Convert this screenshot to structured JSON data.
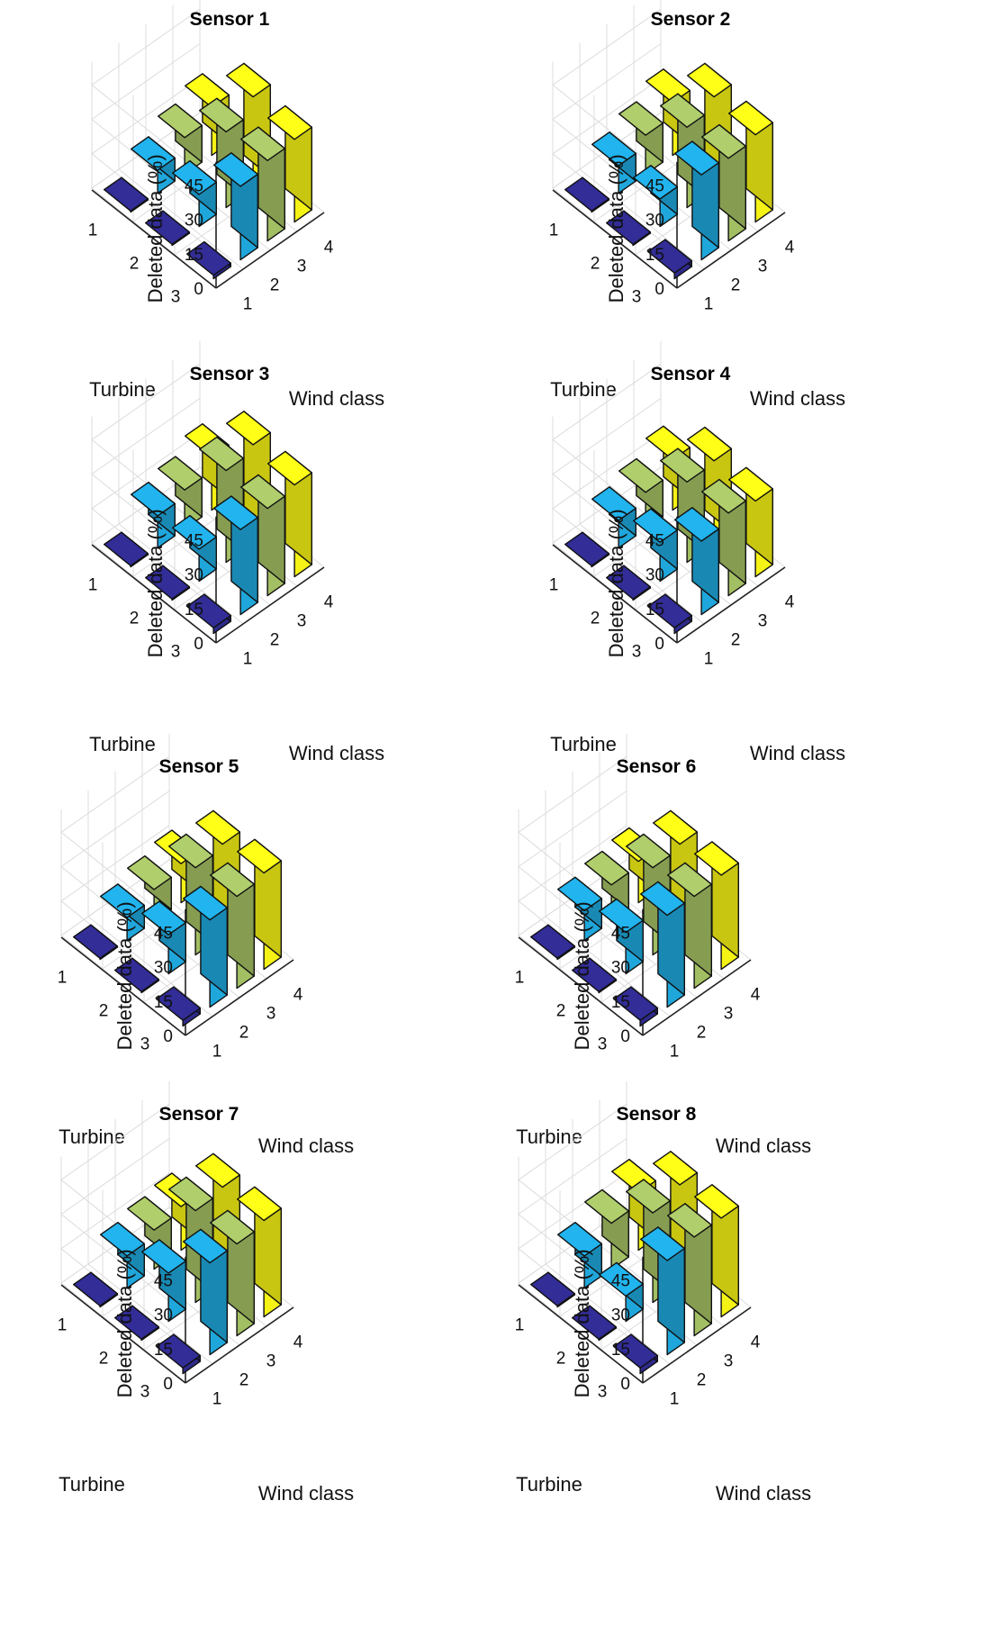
{
  "chart_data": [
    {
      "type": "bar3d",
      "title": "Sensor 1",
      "xlabel": "Wind class",
      "ylabel": "Turbine",
      "zlabel": "Deleted data (%)",
      "x_ticks": [
        "1",
        "2",
        "3",
        "4"
      ],
      "y_ticks": [
        "1",
        "2",
        "3"
      ],
      "z_ticks": [
        "0",
        "15",
        "30",
        "45"
      ],
      "zlim": [
        0,
        45
      ],
      "series": [
        {
          "turbine": "1",
          "values": [
            0.5,
            10,
            16,
            21
          ]
        },
        {
          "turbine": "2",
          "values": [
            0.5,
            14,
            33,
            40
          ]
        },
        {
          "turbine": "3",
          "values": [
            1.5,
            32,
            35,
            36
          ]
        }
      ]
    },
    {
      "type": "bar3d",
      "title": "Sensor 2",
      "xlabel": "Wind class",
      "ylabel": "Turbine",
      "zlabel": "Deleted data (%)",
      "x_ticks": [
        "1",
        "2",
        "3",
        "4"
      ],
      "y_ticks": [
        "1",
        "2",
        "3"
      ],
      "z_ticks": [
        "0",
        "15",
        "30",
        "45"
      ],
      "zlim": [
        0,
        45
      ],
      "series": [
        {
          "turbine": "1",
          "values": [
            0.5,
            12,
            17,
            23
          ]
        },
        {
          "turbine": "2",
          "values": [
            0.5,
            12,
            35,
            40
          ]
        },
        {
          "turbine": "3",
          "values": [
            2.5,
            37,
            36,
            38
          ]
        }
      ]
    },
    {
      "type": "bar3d",
      "title": "Sensor 3",
      "xlabel": "Wind class",
      "ylabel": "Turbine",
      "zlabel": "Deleted data (%)",
      "x_ticks": [
        "1",
        "2",
        "3",
        "4"
      ],
      "y_ticks": [
        "1",
        "2",
        "3"
      ],
      "z_ticks": [
        "0",
        "15",
        "30",
        "45"
      ],
      "zlim": [
        0,
        45
      ],
      "series": [
        {
          "turbine": "1",
          "values": [
            0.5,
            14,
            17,
            23
          ]
        },
        {
          "turbine": "2",
          "values": [
            0.5,
            14,
            40,
            43
          ]
        },
        {
          "turbine": "3",
          "values": [
            2.5,
            37,
            38,
            40
          ]
        }
      ]
    },
    {
      "type": "bar3d",
      "title": "Sensor 4",
      "xlabel": "Wind class",
      "ylabel": "Turbine",
      "zlabel": "Deleted data (%)",
      "x_ticks": [
        "1",
        "2",
        "3",
        "4"
      ],
      "y_ticks": [
        "1",
        "2",
        "3"
      ],
      "z_ticks": [
        "0",
        "15",
        "30",
        "45"
      ],
      "zlim": [
        0,
        45
      ],
      "series": [
        {
          "turbine": "1",
          "values": [
            0.5,
            12,
            16,
            22
          ]
        },
        {
          "turbine": "2",
          "values": [
            0.5,
            17,
            35,
            36
          ]
        },
        {
          "turbine": "3",
          "values": [
            2.5,
            32,
            36,
            33
          ]
        }
      ]
    },
    {
      "type": "bar3d",
      "title": "Sensor 5",
      "xlabel": "Wind class",
      "ylabel": "Turbine",
      "zlabel": "Deleted data (%)",
      "x_ticks": [
        "1",
        "2",
        "3",
        "4"
      ],
      "y_ticks": [
        "1",
        "2",
        "3"
      ],
      "z_ticks": [
        "0",
        "15",
        "30",
        "45"
      ],
      "zlim": [
        0,
        45
      ],
      "series": [
        {
          "turbine": "1",
          "values": [
            0.5,
            10,
            14,
            17
          ]
        },
        {
          "turbine": "2",
          "values": [
            0.5,
            17,
            38,
            40
          ]
        },
        {
          "turbine": "3",
          "values": [
            2.5,
            38,
            40,
            42
          ]
        }
      ]
    },
    {
      "type": "bar3d",
      "title": "Sensor 6",
      "xlabel": "Wind class",
      "ylabel": "Turbine",
      "zlabel": "Deleted data (%)",
      "x_ticks": [
        "1",
        "2",
        "3",
        "4"
      ],
      "y_ticks": [
        "1",
        "2",
        "3"
      ],
      "z_ticks": [
        "0",
        "15",
        "30",
        "45"
      ],
      "zlim": [
        0,
        45
      ],
      "series": [
        {
          "turbine": "1",
          "values": [
            0.5,
            13,
            16,
            18
          ]
        },
        {
          "turbine": "2",
          "values": [
            0.5,
            18,
            38,
            40
          ]
        },
        {
          "turbine": "3",
          "values": [
            2.5,
            40,
            40,
            41
          ]
        }
      ]
    },
    {
      "type": "bar3d",
      "title": "Sensor 7",
      "xlabel": "Wind class",
      "ylabel": "Turbine",
      "zlabel": "Deleted data (%)",
      "x_ticks": [
        "1",
        "2",
        "3",
        "4"
      ],
      "y_ticks": [
        "1",
        "2",
        "3"
      ],
      "z_ticks": [
        "0",
        "15",
        "30",
        "45"
      ],
      "zlim": [
        0,
        45
      ],
      "series": [
        {
          "turbine": "1",
          "values": [
            0.5,
            14,
            17,
            19
          ]
        },
        {
          "turbine": "2",
          "values": [
            0.5,
            21,
            40,
            42
          ]
        },
        {
          "turbine": "3",
          "values": [
            2.5,
            40,
            40,
            42
          ]
        }
      ]
    },
    {
      "type": "bar3d",
      "title": "Sensor 8",
      "xlabel": "Wind class",
      "ylabel": "Turbine",
      "zlabel": "Deleted data (%)",
      "x_ticks": [
        "1",
        "2",
        "3",
        "4"
      ],
      "y_ticks": [
        "1",
        "2",
        "3"
      ],
      "z_ticks": [
        "0",
        "15",
        "30",
        "45"
      ],
      "zlim": [
        0,
        45
      ],
      "series": [
        {
          "turbine": "1",
          "values": [
            0.5,
            14,
            20,
            25
          ]
        },
        {
          "turbine": "2",
          "values": [
            0.5,
            11,
            39,
            43
          ]
        },
        {
          "turbine": "3",
          "values": [
            2.5,
            41,
            43,
            43
          ]
        }
      ]
    }
  ],
  "colors": {
    "wind_class_1": "#2e2a8c",
    "wind_class_2": "#1fa7dc",
    "wind_class_3": "#a3bf63",
    "wind_class_4": "#f5f215",
    "grid": "#dcdcdc",
    "axis": "#222222"
  }
}
